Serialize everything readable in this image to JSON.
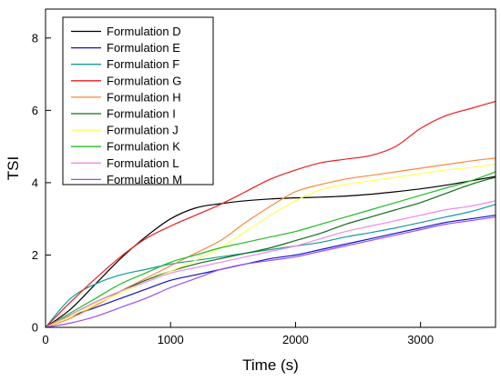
{
  "chart_data": {
    "type": "line",
    "title": "",
    "xlabel": "Time (s)",
    "ylabel": "TSI",
    "xlim": [
      0,
      3600
    ],
    "ylim": [
      0,
      8.8
    ],
    "xticks": [
      0,
      1000,
      2000,
      3000
    ],
    "yticks": [
      0,
      2,
      4,
      6,
      8
    ],
    "grid": false,
    "legend_position": "top-left",
    "series": [
      {
        "name": "Formulation D",
        "color": "#000000",
        "x": [
          0,
          200,
          400,
          600,
          800,
          1000,
          1200,
          1400,
          1600,
          1800,
          2000,
          2200,
          2400,
          2600,
          2800,
          3000,
          3200,
          3400,
          3600
        ],
        "y": [
          0,
          0.5,
          1.2,
          1.9,
          2.5,
          3.0,
          3.3,
          3.42,
          3.5,
          3.55,
          3.58,
          3.6,
          3.63,
          3.68,
          3.75,
          3.83,
          3.93,
          4.05,
          4.17
        ]
      },
      {
        "name": "Formulation E",
        "color": "#1010c8",
        "x": [
          0,
          200,
          400,
          600,
          800,
          1000,
          1200,
          1400,
          1600,
          1800,
          2000,
          2200,
          2400,
          2600,
          2800,
          3000,
          3200,
          3400,
          3600
        ],
        "y": [
          0,
          0.3,
          0.55,
          0.8,
          1.05,
          1.3,
          1.45,
          1.6,
          1.75,
          1.9,
          2.0,
          2.15,
          2.3,
          2.45,
          2.6,
          2.75,
          2.9,
          3.0,
          3.1
        ]
      },
      {
        "name": "Formulation F",
        "color": "#139a9a",
        "x": [
          0,
          200,
          400,
          600,
          800,
          1000,
          1200,
          1400,
          1600,
          1800,
          2000,
          2200,
          2400,
          2600,
          2800,
          3000,
          3200,
          3400,
          3600
        ],
        "y": [
          0,
          0.8,
          1.2,
          1.45,
          1.6,
          1.75,
          1.85,
          1.95,
          2.05,
          2.15,
          2.25,
          2.35,
          2.5,
          2.62,
          2.75,
          2.9,
          3.05,
          3.2,
          3.4
        ]
      },
      {
        "name": "Formulation G",
        "color": "#ee1c1c",
        "x": [
          0,
          200,
          400,
          600,
          800,
          1000,
          1200,
          1400,
          1600,
          1800,
          2000,
          2200,
          2400,
          2600,
          2800,
          3000,
          3200,
          3400,
          3600
        ],
        "y": [
          0,
          0.7,
          1.35,
          1.95,
          2.45,
          2.8,
          3.1,
          3.4,
          3.75,
          4.1,
          4.35,
          4.55,
          4.65,
          4.75,
          5.0,
          5.5,
          5.85,
          6.05,
          6.25
        ]
      },
      {
        "name": "Formulation H",
        "color": "#f68a3e",
        "x": [
          0,
          200,
          400,
          600,
          800,
          1000,
          1200,
          1400,
          1600,
          1800,
          2000,
          2200,
          2400,
          2600,
          2800,
          3000,
          3200,
          3400,
          3600
        ],
        "y": [
          0,
          0.25,
          0.6,
          1.0,
          1.35,
          1.7,
          2.05,
          2.4,
          2.9,
          3.35,
          3.75,
          3.95,
          4.1,
          4.2,
          4.3,
          4.4,
          4.5,
          4.6,
          4.68
        ]
      },
      {
        "name": "Formulation I",
        "color": "#0e6e18",
        "x": [
          0,
          200,
          400,
          600,
          800,
          1000,
          1200,
          1400,
          1600,
          1800,
          2000,
          2200,
          2400,
          2600,
          2800,
          3000,
          3200,
          3400,
          3600
        ],
        "y": [
          0,
          0.35,
          0.7,
          1.0,
          1.3,
          1.55,
          1.75,
          1.9,
          2.05,
          2.2,
          2.4,
          2.6,
          2.85,
          3.05,
          3.25,
          3.45,
          3.7,
          3.95,
          4.15
        ]
      },
      {
        "name": "Formulation J",
        "color": "#ffff55",
        "x": [
          0,
          200,
          400,
          600,
          800,
          1000,
          1200,
          1400,
          1600,
          1800,
          2000,
          2200,
          2400,
          2600,
          2800,
          3000,
          3200,
          3400,
          3600
        ],
        "y": [
          0,
          0.3,
          0.65,
          0.95,
          1.25,
          1.55,
          1.85,
          2.2,
          2.65,
          3.1,
          3.5,
          3.8,
          3.95,
          4.05,
          4.15,
          4.25,
          4.35,
          4.42,
          4.5
        ]
      },
      {
        "name": "Formulation K",
        "color": "#22bb22",
        "x": [
          0,
          200,
          400,
          600,
          800,
          1000,
          1200,
          1400,
          1600,
          1800,
          2000,
          2200,
          2400,
          2600,
          2800,
          3000,
          3200,
          3400,
          3600
        ],
        "y": [
          0,
          0.4,
          0.8,
          1.2,
          1.5,
          1.8,
          2.0,
          2.2,
          2.35,
          2.5,
          2.65,
          2.85,
          3.05,
          3.25,
          3.45,
          3.65,
          3.85,
          4.05,
          4.3
        ]
      },
      {
        "name": "Formulation L",
        "color": "#ee88ee",
        "x": [
          0,
          200,
          400,
          600,
          800,
          1000,
          1200,
          1400,
          1600,
          1800,
          2000,
          2200,
          2400,
          2600,
          2800,
          3000,
          3200,
          3400,
          3600
        ],
        "y": [
          0,
          0.35,
          0.7,
          1.0,
          1.25,
          1.5,
          1.65,
          1.8,
          1.95,
          2.1,
          2.25,
          2.45,
          2.65,
          2.8,
          2.95,
          3.1,
          3.25,
          3.35,
          3.5
        ]
      },
      {
        "name": "Formulation M",
        "color": "#9b4df0",
        "x": [
          0,
          200,
          400,
          600,
          800,
          1000,
          1200,
          1400,
          1600,
          1800,
          2000,
          2200,
          2400,
          2600,
          2800,
          3000,
          3200,
          3400,
          3600
        ],
        "y": [
          0,
          0.12,
          0.3,
          0.55,
          0.8,
          1.1,
          1.35,
          1.6,
          1.75,
          1.85,
          1.95,
          2.1,
          2.25,
          2.4,
          2.55,
          2.7,
          2.85,
          2.95,
          3.05
        ]
      }
    ]
  }
}
